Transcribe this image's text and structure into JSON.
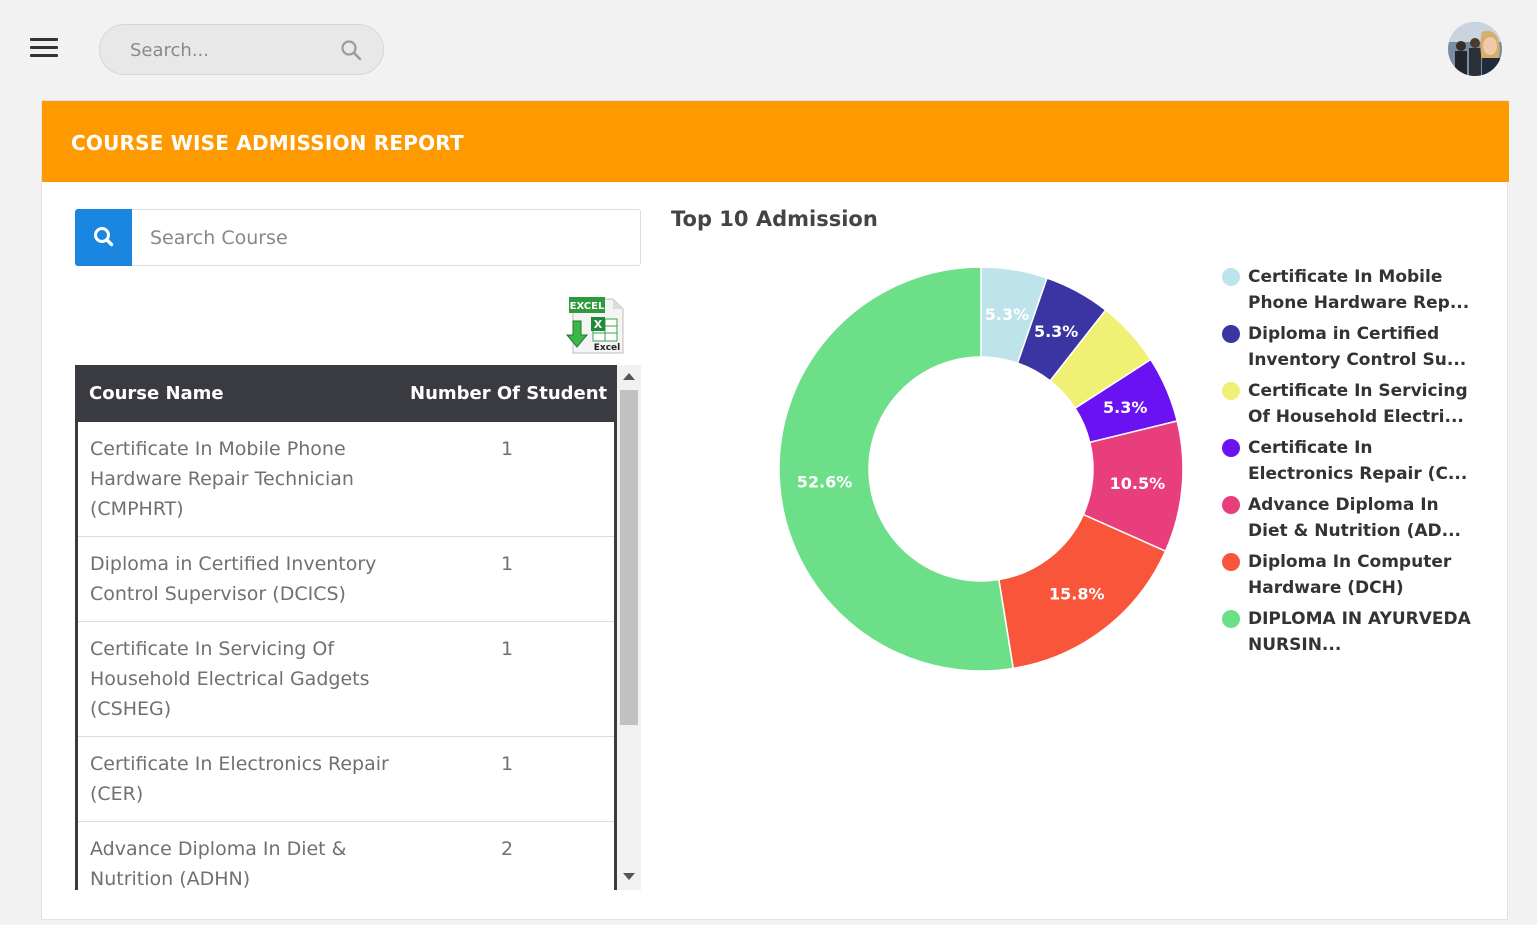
{
  "topbar": {
    "search_placeholder": "Search...",
    "menu_icon": "hamburger-icon",
    "search_icon": "search-icon"
  },
  "report": {
    "title": "COURSE WISE ADMISSION REPORT",
    "accent_color": "#ff9900",
    "course_search_placeholder": "Search Course",
    "export_label": "EXCEL",
    "export_sublabel": "Excel"
  },
  "table": {
    "columns": [
      "Course Name",
      "Number Of Student"
    ],
    "rows": [
      {
        "name": "Certificate In Mobile Phone Hardware Repair Technician (CMPHRT)",
        "count": "1"
      },
      {
        "name": "Diploma in Certified Inventory Control Supervisor (DCICS)",
        "count": "1"
      },
      {
        "name": "Certificate In Servicing Of Household Electrical Gadgets (CSHEG)",
        "count": "1"
      },
      {
        "name": "Certificate In Electronics Repair (CER)",
        "count": "1"
      },
      {
        "name": "Advance Diploma In Diet & Nutrition (ADHN)",
        "count": "2"
      }
    ]
  },
  "chart_data": {
    "type": "pie",
    "title": "Top 10 Admission",
    "donut": true,
    "legend_position": "right",
    "slices": [
      {
        "label": "Certificate In Mobile Phone Hardware Rep...",
        "value": 5.3,
        "display": "5.3%",
        "color": "#bfe3ea"
      },
      {
        "label": "Diploma in Certified Inventory Control Su...",
        "value": 5.3,
        "display": "5.3%",
        "color": "#3b35a3"
      },
      {
        "label": "Certificate In Servicing Of Household Electri...",
        "value": 5.3,
        "display": "",
        "color": "#f0f075"
      },
      {
        "label": "Certificate In Electronics Repair (C...",
        "value": 5.3,
        "display": "5.3%",
        "color": "#6a12f2"
      },
      {
        "label": "Advance Diploma In Diet & Nutrition (AD...",
        "value": 10.5,
        "display": "10.5%",
        "color": "#e83e7c"
      },
      {
        "label": "Diploma In Computer Hardware (DCH)",
        "value": 15.8,
        "display": "15.8%",
        "color": "#f8553b"
      },
      {
        "label": "DIPLOMA IN AYURVEDA NURSIN...",
        "value": 52.6,
        "display": "52.6%",
        "color": "#6cdf88"
      }
    ]
  }
}
